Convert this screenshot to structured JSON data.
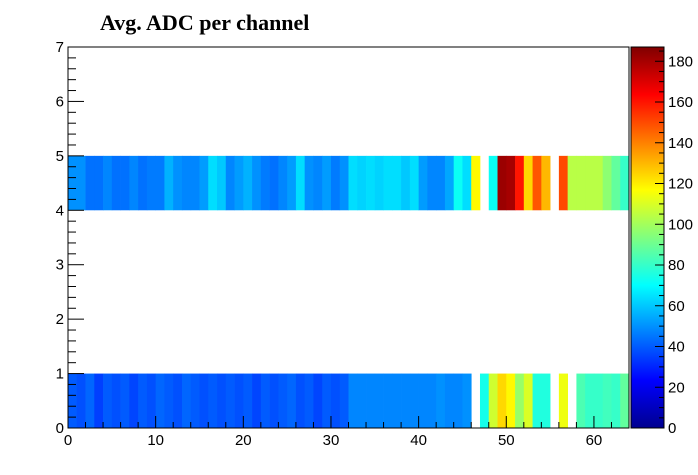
{
  "chart_data": {
    "type": "heatmap",
    "title": "Avg. ADC per channel",
    "xlabel": "",
    "ylabel": "",
    "xlim": [
      0,
      64
    ],
    "ylim": [
      0,
      7
    ],
    "x_ticks": [
      "0",
      "10",
      "20",
      "30",
      "40",
      "50",
      "60"
    ],
    "y_ticks": [
      "0",
      "1",
      "2",
      "3",
      "4",
      "5",
      "6",
      "7"
    ],
    "colorbar": {
      "range": [
        0,
        187
      ],
      "ticks": [
        "0",
        "20",
        "40",
        "60",
        "80",
        "100",
        "120",
        "140",
        "160",
        "180"
      ]
    },
    "rows": [
      {
        "y": [
          0,
          1
        ],
        "values": [
          40,
          38,
          42,
          35,
          40,
          38,
          40,
          36,
          40,
          38,
          42,
          40,
          38,
          42,
          40,
          38,
          40,
          38,
          40,
          38,
          40,
          36,
          40,
          38,
          40,
          42,
          38,
          40,
          36,
          40,
          38,
          40,
          48,
          48,
          48,
          48,
          48,
          48,
          48,
          48,
          48,
          48,
          50,
          48,
          48,
          50,
          null,
          74,
          108,
          124,
          118,
          98,
          110,
          76,
          76,
          null,
          114,
          null,
          84,
          80,
          80,
          82,
          80,
          88
        ]
      },
      {
        "y": [
          4,
          5
        ],
        "values": [
          50,
          50,
          44,
          44,
          48,
          44,
          44,
          48,
          44,
          46,
          46,
          56,
          50,
          48,
          48,
          52,
          64,
          60,
          48,
          52,
          56,
          50,
          46,
          44,
          48,
          52,
          64,
          50,
          48,
          52,
          46,
          50,
          64,
          62,
          64,
          62,
          64,
          64,
          60,
          64,
          52,
          48,
          48,
          54,
          72,
          64,
          118,
          null,
          72,
          182,
          180,
          160,
          124,
          148,
          130,
          null,
          150,
          104,
          104,
          104,
          104,
          96,
          88,
          80
        ]
      }
    ]
  }
}
